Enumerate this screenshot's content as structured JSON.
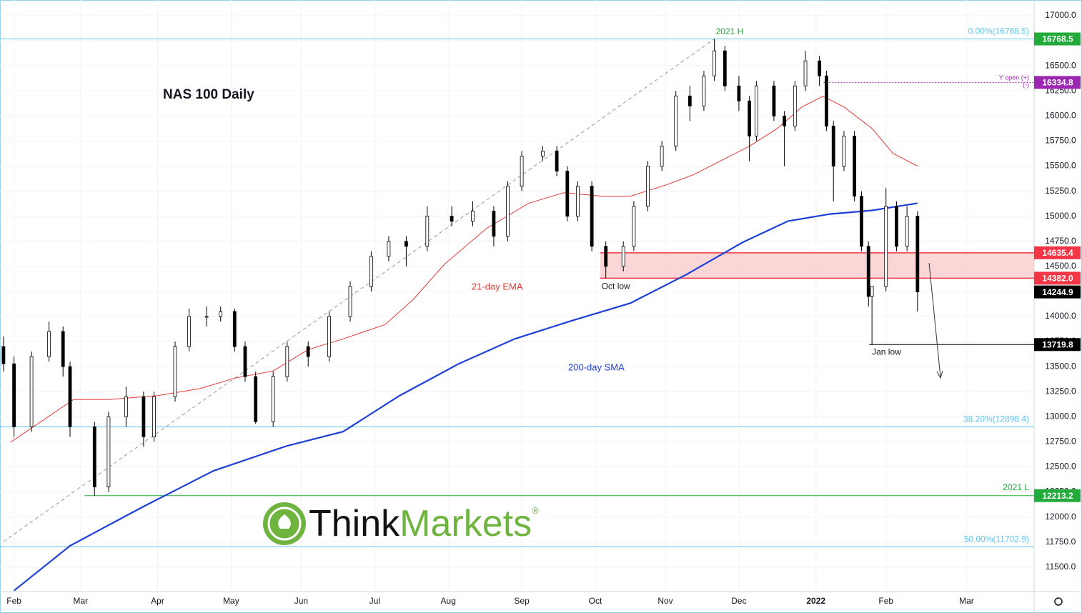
{
  "chart_data": {
    "type": "candlestick",
    "title": "NAS 100 Daily",
    "candles": {
      "x": [
        0,
        3,
        8,
        13,
        17,
        19,
        26,
        30,
        35,
        40,
        43,
        49,
        53,
        58,
        62,
        66,
        69,
        72,
        77,
        81,
        87,
        93,
        99,
        105,
        110,
        115,
        121,
        128,
        134,
        140,
        144,
        148,
        154,
        158,
        161,
        164,
        168,
        172,
        177,
        180,
        184,
        188,
        192,
        196,
        200,
        203,
        206,
        210,
        213,
        215,
        220,
        223,
        226,
        229,
        233,
        235,
        237,
        240,
        243,
        245,
        247,
        248,
        252,
        255,
        258,
        261
      ],
      "open": [
        13700,
        13528,
        12900,
        13600,
        13850,
        13500,
        12900,
        12300,
        13000,
        13200,
        12800,
        13200,
        13700,
        14000,
        14000,
        14050,
        13700,
        13400,
        12950,
        13400,
        13700,
        13600,
        14000,
        14300,
        14600,
        14750,
        14700,
        15000,
        14950,
        15050,
        14800,
        15300,
        15600,
        15650,
        15450,
        15000,
        15300,
        14700,
        14500,
        14700,
        15100,
        15500,
        15700,
        16200,
        16100,
        16400,
        16650,
        16300,
        16150,
        15800,
        16300,
        16000,
        15900,
        16300,
        16550,
        16400,
        15900,
        15500,
        15800,
        15200,
        14700,
        14200,
        14300,
        15100,
        14700,
        15000
      ],
      "high": [
        13800,
        13600,
        13650,
        13950,
        13900,
        13550,
        12950,
        13050,
        13300,
        13250,
        13250,
        13750,
        14080,
        14100,
        14100,
        14080,
        13750,
        13450,
        13450,
        13750,
        13750,
        14050,
        14350,
        14650,
        14800,
        14800,
        15100,
        15100,
        15150,
        15100,
        15350,
        15650,
        15700,
        15700,
        15500,
        15350,
        15350,
        14750,
        14750,
        15150,
        15550,
        15750,
        16250,
        16300,
        16450,
        16768.5,
        16700,
        16400,
        16200,
        16350,
        16350,
        16050,
        16350,
        16650,
        16600,
        16450,
        15950,
        15850,
        15850,
        15250,
        14750,
        14300,
        15280,
        15150,
        15100,
        15050
      ],
      "low": [
        13450,
        12800,
        12850,
        13550,
        13400,
        12800,
        12213.2,
        12250,
        12900,
        12700,
        12750,
        13150,
        13650,
        13900,
        13950,
        13650,
        13350,
        12930,
        12900,
        13350,
        13500,
        13550,
        13950,
        14250,
        14550,
        14500,
        14650,
        14900,
        14900,
        14700,
        14750,
        15250,
        15550,
        15400,
        14950,
        14950,
        14650,
        14382,
        14450,
        14650,
        15050,
        15450,
        15650,
        15950,
        16050,
        16350,
        16250,
        16050,
        15550,
        15750,
        15950,
        15500,
        15850,
        16250,
        16300,
        15850,
        15150,
        15450,
        15150,
        14650,
        14100,
        13719.8,
        14250,
        14650,
        14650,
        14050
      ],
      "close": [
        13528,
        12900,
        13600,
        13850,
        13500,
        12900,
        12300,
        13000,
        13200,
        12800,
        13200,
        13700,
        14000,
        14000,
        14050,
        13700,
        13400,
        12950,
        13400,
        13700,
        13600,
        14000,
        14300,
        14600,
        14750,
        14700,
        15000,
        14950,
        15050,
        14800,
        15300,
        15600,
        15650,
        15450,
        15000,
        15300,
        14700,
        14500,
        14700,
        15100,
        15500,
        15700,
        16200,
        16100,
        16400,
        16650,
        16300,
        16150,
        15800,
        16300,
        16000,
        15900,
        16300,
        16550,
        16400,
        15900,
        15500,
        15800,
        15200,
        14700,
        14200,
        14300,
        15100,
        14700,
        15000,
        14244.9
      ]
    },
    "series": [
      {
        "name": "21-day EMA",
        "color": "#e53935",
        "x": [
          2,
          20,
          30,
          44,
          56,
          66,
          77,
          87,
          97,
          109,
          117,
          126,
          138,
          150,
          160,
          171,
          179,
          189,
          197,
          205,
          213,
          221,
          228,
          234,
          240,
          248,
          254,
          261
        ],
        "values": [
          12745,
          13172,
          13172,
          13210,
          13280,
          13385,
          13457,
          13670,
          13777,
          13920,
          14170,
          14524,
          14880,
          15130,
          15235,
          15200,
          15200,
          15310,
          15413,
          15556,
          15698,
          15876,
          16090,
          16196,
          16090,
          15876,
          15627,
          15500
        ]
      },
      {
        "name": "200-day SMA",
        "color": "#1e3fd8",
        "x": [
          3,
          19,
          40,
          60,
          81,
          97,
          113,
          130,
          146,
          162,
          179,
          195,
          211,
          224,
          236,
          248,
          261
        ],
        "values": [
          11265,
          11713,
          12105,
          12461,
          12710,
          12852,
          13208,
          13528,
          13777,
          13955,
          14133,
          14418,
          14738,
          14951,
          15022,
          15058,
          15130
        ]
      }
    ],
    "xlim": [
      -1,
      294.3
    ],
    "xticks": [
      {
        "value": 3,
        "label": "Feb"
      },
      {
        "value": 22,
        "label": "Mar"
      },
      {
        "value": 44,
        "label": "Apr"
      },
      {
        "value": 65,
        "label": "May"
      },
      {
        "value": 85,
        "label": "Jun"
      },
      {
        "value": 106,
        "label": "Jul"
      },
      {
        "value": 127,
        "label": "Aug"
      },
      {
        "value": 148,
        "label": "Sep"
      },
      {
        "value": 169,
        "label": "Oct"
      },
      {
        "value": 189,
        "label": "Nov"
      },
      {
        "value": 210,
        "label": "Dec"
      },
      {
        "value": 232,
        "label": "2022"
      },
      {
        "value": 252,
        "label": "Feb"
      },
      {
        "value": 275,
        "label": "Mar"
      }
    ],
    "ylim": [
      11256,
      17157
    ],
    "yticks": [
      {
        "value": 11500,
        "label": "11500.0"
      },
      {
        "value": 11750,
        "label": "11750.0"
      },
      {
        "value": 12000,
        "label": "12000.0"
      },
      {
        "value": 12250,
        "label": "12250.0"
      },
      {
        "value": 12500,
        "label": "12500.0"
      },
      {
        "value": 12750,
        "label": "12750.0"
      },
      {
        "value": 13000,
        "label": "13000.0"
      },
      {
        "value": 13250,
        "label": "13250.0"
      },
      {
        "value": 13500,
        "label": "13500.0"
      },
      {
        "value": 13750,
        "label": "13750.0"
      },
      {
        "value": 14000,
        "label": "14000.0"
      },
      {
        "value": 14250,
        "label": "14250.0"
      },
      {
        "value": 14500,
        "label": "14500.0"
      },
      {
        "value": 14750,
        "label": "14750.0"
      },
      {
        "value": 15000,
        "label": "15000.0"
      },
      {
        "value": 15250,
        "label": "15250.0"
      },
      {
        "value": 15500,
        "label": "15500.0"
      },
      {
        "value": 15750,
        "label": "15750.0"
      },
      {
        "value": 16000,
        "label": "16000.0"
      },
      {
        "value": 16250,
        "label": "16250.0"
      },
      {
        "value": 16500,
        "label": "16500.0"
      },
      {
        "value": 16750,
        "label": "16750.0"
      },
      {
        "value": 17000,
        "label": "17000.0"
      }
    ],
    "grid": true,
    "levels": [
      {
        "value": 16768.5,
        "label": "16768.5",
        "color": "#22ab3a"
      },
      {
        "value": 16334.8,
        "label": "16334.8",
        "color": "#9c27b0"
      },
      {
        "value": 14635.4,
        "label": "14635.4",
        "color": "#f23645"
      },
      {
        "value": 14382.0,
        "label": "14382.0",
        "color": "#f23645"
      },
      {
        "value": 14244.9,
        "label": "14244.9",
        "color": "#000000"
      },
      {
        "value": 13719.8,
        "label": "13719.8",
        "color": "#000000"
      },
      {
        "value": 12213.2,
        "label": "12213.2",
        "color": "#22ab3a"
      }
    ],
    "fib": [
      {
        "value": 16768.5,
        "label": "0.00%(16768.5)"
      },
      {
        "value": 12898.4,
        "label": "38.20%(12898.4)"
      },
      {
        "value": 11702.9,
        "label": "50.00%(11702.9)"
      }
    ],
    "annotations": {
      "high": "2021 H",
      "low": "2021 L",
      "oct": "Oct low",
      "jan": "Jan low",
      "yopen": "Y open (+)",
      "yopen2": "(-)"
    },
    "logo": {
      "part1": "Think",
      "part2": "Markets",
      "part3": "®"
    }
  }
}
